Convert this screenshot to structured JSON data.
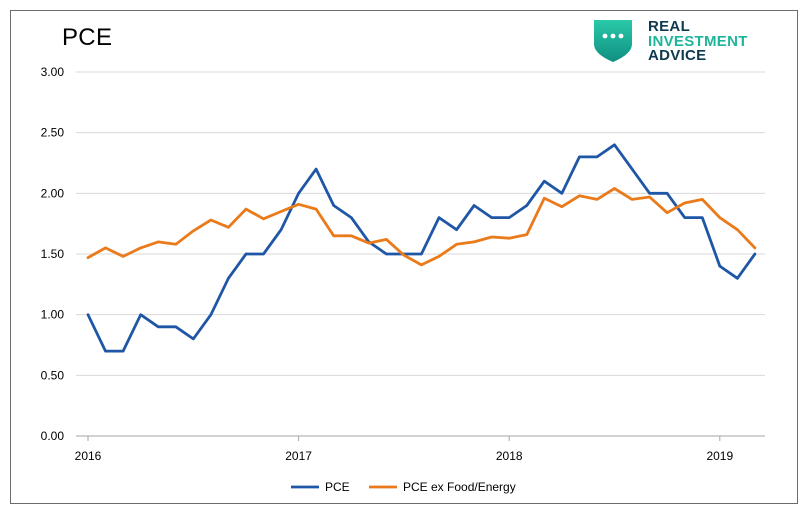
{
  "chart_data": {
    "type": "line",
    "title": "PCE",
    "xlabel": "",
    "ylabel": "",
    "ylim": [
      0,
      3
    ],
    "y_ticks": [
      "0.00",
      "0.50",
      "1.00",
      "1.50",
      "2.00",
      "2.50",
      "3.00"
    ],
    "x_ticks": [
      "2016",
      "2017",
      "2018",
      "2019"
    ],
    "grid": "horizontal",
    "legend_position": "bottom",
    "x": [
      "2016-01",
      "2016-02",
      "2016-03",
      "2016-04",
      "2016-05",
      "2016-06",
      "2016-07",
      "2016-08",
      "2016-09",
      "2016-10",
      "2016-11",
      "2016-12",
      "2017-01",
      "2017-02",
      "2017-03",
      "2017-04",
      "2017-05",
      "2017-06",
      "2017-07",
      "2017-08",
      "2017-09",
      "2017-10",
      "2017-11",
      "2017-12",
      "2018-01",
      "2018-02",
      "2018-03",
      "2018-04",
      "2018-05",
      "2018-06",
      "2018-07",
      "2018-08",
      "2018-09",
      "2018-10",
      "2018-11",
      "2018-12",
      "2019-01",
      "2019-02",
      "2019-03"
    ],
    "series": [
      {
        "name": "PCE",
        "color": "#1f56a6",
        "values": [
          1.0,
          0.7,
          0.7,
          1.0,
          0.9,
          0.9,
          0.8,
          1.0,
          1.3,
          1.5,
          1.5,
          1.7,
          2.0,
          2.2,
          1.9,
          1.8,
          1.6,
          1.5,
          1.5,
          1.5,
          1.8,
          1.7,
          1.9,
          1.8,
          1.8,
          1.9,
          2.1,
          2.0,
          2.3,
          2.3,
          2.4,
          2.2,
          2.0,
          2.0,
          1.8,
          1.8,
          1.4,
          1.3,
          1.5
        ]
      },
      {
        "name": "PCE ex Food/Energy",
        "color": "#ea7a1a",
        "values": [
          1.47,
          1.55,
          1.48,
          1.55,
          1.6,
          1.58,
          1.69,
          1.78,
          1.72,
          1.87,
          1.79,
          1.85,
          1.91,
          1.87,
          1.65,
          1.65,
          1.59,
          1.62,
          1.49,
          1.41,
          1.48,
          1.58,
          1.6,
          1.64,
          1.63,
          1.66,
          1.96,
          1.89,
          1.98,
          1.95,
          2.04,
          1.95,
          1.97,
          1.84,
          1.92,
          1.95,
          1.8,
          1.7,
          1.55
        ]
      }
    ]
  },
  "logo": {
    "line1": "REAL",
    "line2": "INVESTMENT",
    "line3": "ADVICE",
    "color_dark": "#0e3a4e",
    "color_accent": "#1fb59a"
  }
}
